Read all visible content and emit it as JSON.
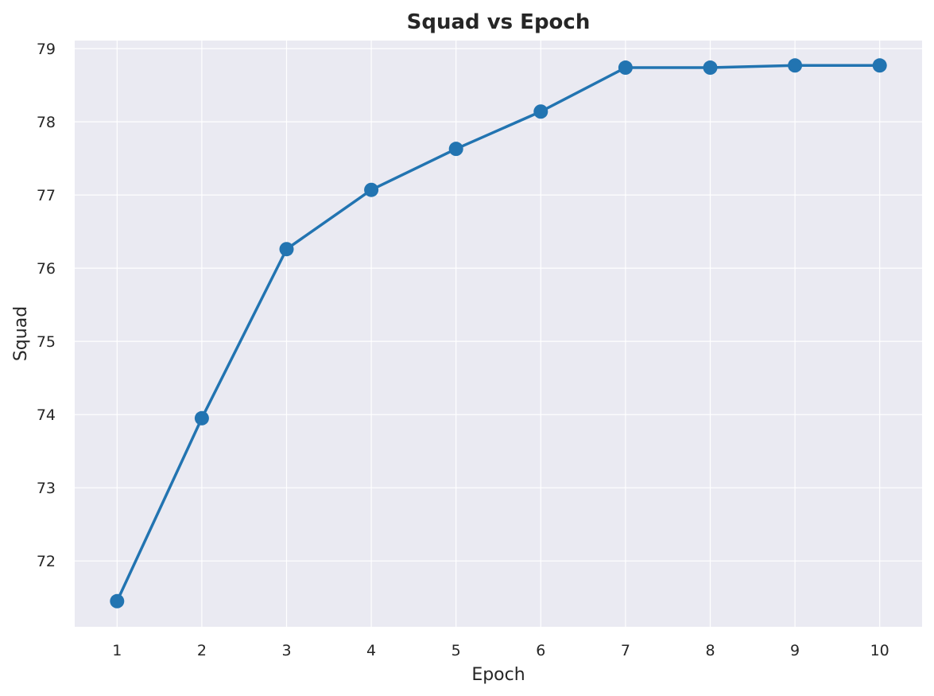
{
  "chart_data": {
    "type": "line",
    "title": "Squad vs Epoch",
    "xlabel": "Epoch",
    "ylabel": "Squad",
    "x": [
      1,
      2,
      3,
      4,
      5,
      6,
      7,
      8,
      9,
      10
    ],
    "series": [
      {
        "values": [
          71.45,
          73.95,
          76.26,
          77.07,
          77.63,
          78.14,
          78.74,
          78.74,
          78.77,
          78.77
        ],
        "color": "#2274b1"
      }
    ],
    "xticks": [
      "1",
      "2",
      "3",
      "4",
      "5",
      "6",
      "7",
      "8",
      "9",
      "10"
    ],
    "yticks": [
      "72",
      "73",
      "74",
      "75",
      "76",
      "77",
      "78",
      "79"
    ],
    "xlim": [
      0.5,
      10.5
    ],
    "ylim": [
      71.1,
      79.11
    ],
    "grid": true,
    "legend": "none",
    "colors": {
      "plot_background": "#eaeaf2",
      "grid": "#ffffff",
      "text": "#262626"
    }
  }
}
